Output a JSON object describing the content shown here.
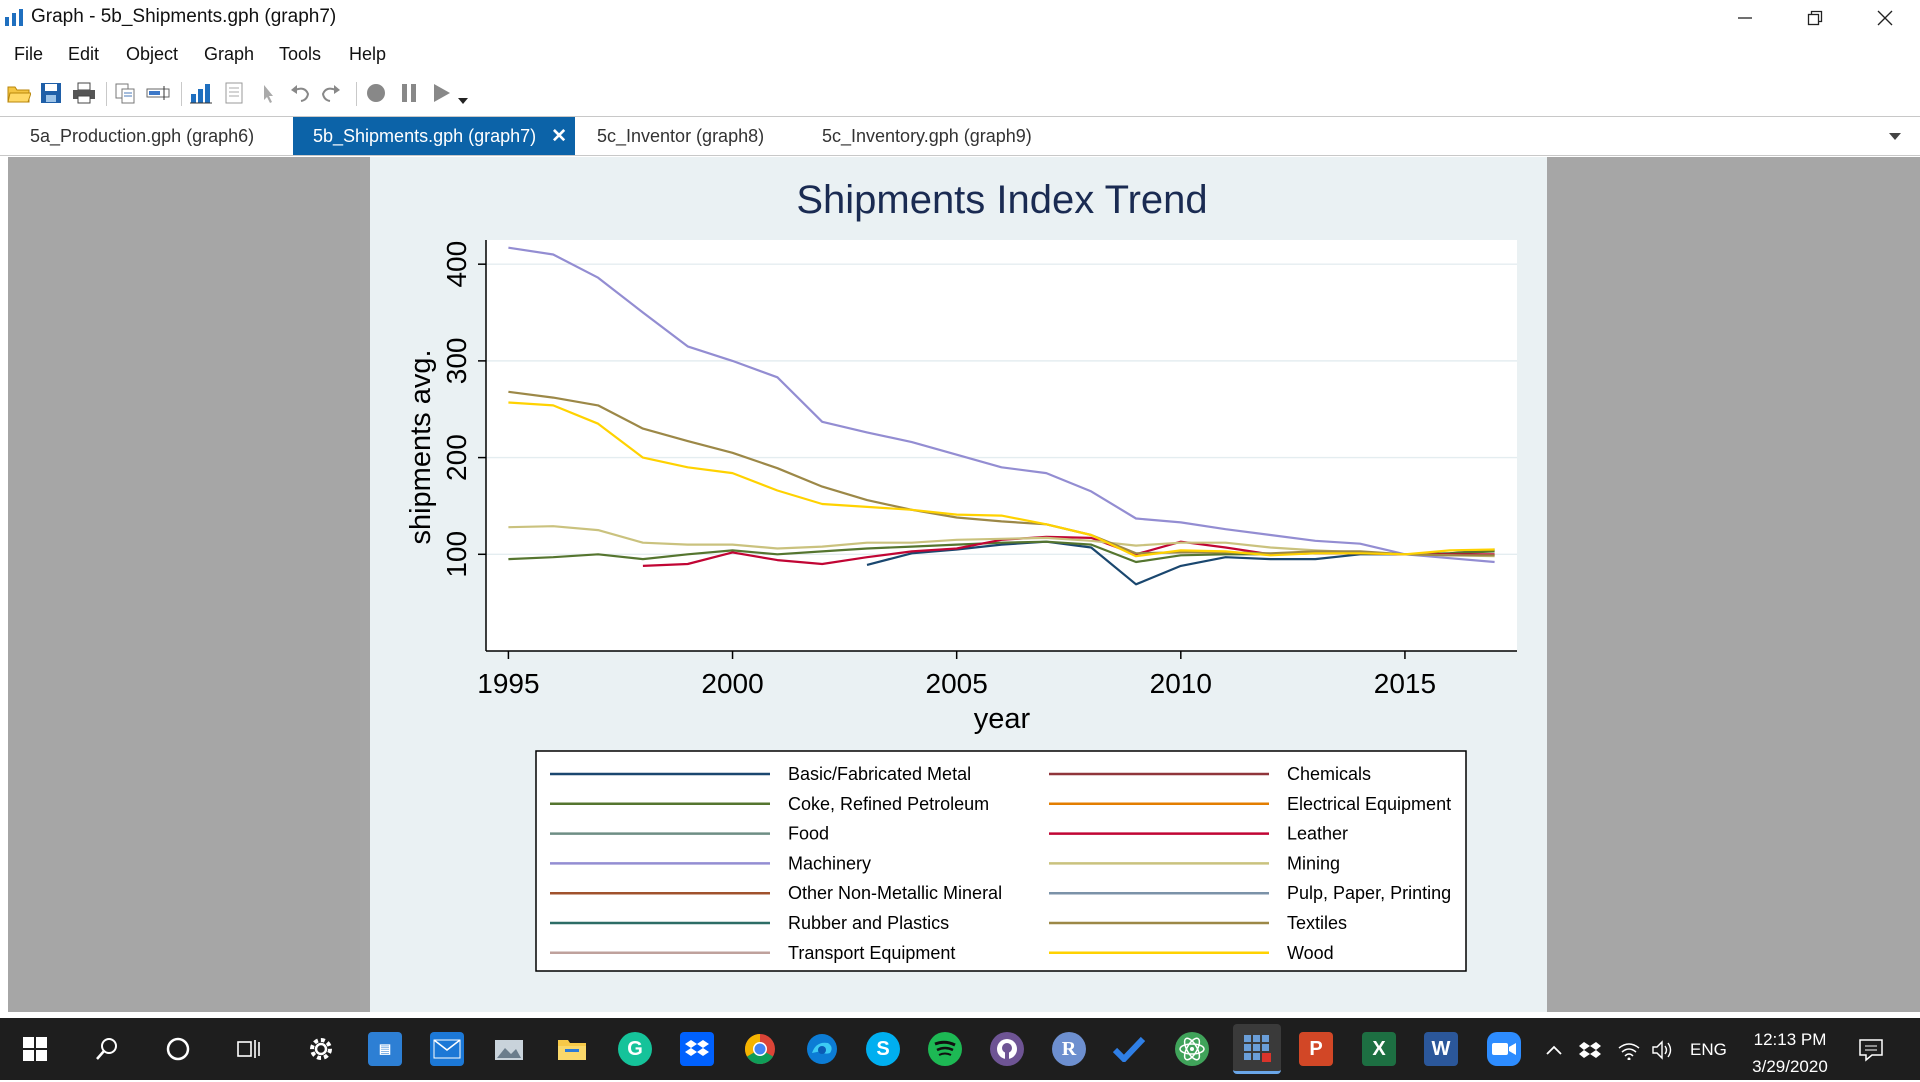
{
  "window": {
    "title": "Graph - 5b_Shipments.gph (graph7)"
  },
  "menu": [
    "File",
    "Edit",
    "Object",
    "Graph",
    "Tools",
    "Help"
  ],
  "toolbar": {
    "icons": [
      "open-icon",
      "save-icon",
      "print-icon",
      "copy-icon",
      "rename-icon",
      "graph-editor-icon",
      "grid-icon",
      "select-icon",
      "undo-icon",
      "redo-icon",
      "record-icon",
      "pause-icon",
      "play-icon"
    ]
  },
  "tabs": [
    {
      "label": "5a_Production.gph (graph6)",
      "active": false
    },
    {
      "label": "5b_Shipments.gph (graph7)",
      "active": true,
      "close": "✕"
    },
    {
      "label": "5c_Inventor (graph8)",
      "active": false
    },
    {
      "label": "5c_Inventory.gph (graph9)",
      "active": false
    }
  ],
  "chart_data": {
    "type": "line",
    "title": "Shipments Index Trend",
    "xlabel": "year",
    "ylabel": "shipments avg.",
    "xlim": [
      1994.5,
      2017.5
    ],
    "ylim": [
      0,
      425
    ],
    "xticks": [
      1995,
      2000,
      2005,
      2010,
      2015
    ],
    "yticks": [
      100,
      200,
      300,
      400
    ],
    "grid": true,
    "legend_position": "bottom",
    "x": [
      1995,
      1996,
      1997,
      1998,
      1999,
      2000,
      2001,
      2002,
      2003,
      2004,
      2005,
      2006,
      2007,
      2008,
      2009,
      2010,
      2011,
      2012,
      2013,
      2014,
      2015,
      2016,
      2017
    ],
    "series": [
      {
        "name": "Basic/Fabricated Metal",
        "color": "#1a476f",
        "values": [
          null,
          null,
          null,
          null,
          null,
          null,
          null,
          null,
          89,
          101,
          105,
          110,
          113,
          107,
          69,
          88,
          97,
          95,
          95,
          100,
          100,
          101,
          105
        ]
      },
      {
        "name": "Chemicals",
        "color": "#90353b",
        "values": [
          null,
          null,
          null,
          null,
          null,
          null,
          null,
          null,
          null,
          null,
          null,
          null,
          null,
          null,
          null,
          null,
          null,
          null,
          null,
          null,
          null,
          null,
          null
        ]
      },
      {
        "name": "Coke, Refined Petroleum",
        "color": "#55752f",
        "values": [
          95,
          97,
          100,
          95,
          100,
          104,
          100,
          103,
          106,
          108,
          110,
          112,
          113,
          110,
          92,
          99,
          100,
          100,
          101,
          101,
          100,
          101,
          103
        ]
      },
      {
        "name": "Electrical Equipment",
        "color": "#e37e00",
        "values": [
          null,
          null,
          null,
          null,
          null,
          null,
          null,
          null,
          null,
          null,
          null,
          null,
          null,
          null,
          null,
          null,
          null,
          null,
          null,
          null,
          null,
          null,
          null
        ]
      },
      {
        "name": "Food",
        "color": "#6e8e84",
        "values": [
          null,
          null,
          null,
          null,
          null,
          null,
          null,
          null,
          null,
          null,
          null,
          null,
          null,
          null,
          null,
          null,
          null,
          null,
          null,
          null,
          null,
          null,
          null
        ]
      },
      {
        "name": "Leather",
        "color": "#c10534",
        "values": [
          null,
          null,
          null,
          88,
          90,
          102,
          94,
          90,
          97,
          103,
          106,
          115,
          118,
          117,
          100,
          113,
          107,
          100,
          101,
          101,
          100,
          100,
          100
        ]
      },
      {
        "name": "Machinery",
        "color": "#938dd2",
        "values": [
          417,
          410,
          386,
          350,
          315,
          300,
          283,
          237,
          226,
          216,
          203,
          190,
          184,
          165,
          137,
          133,
          126,
          120,
          114,
          111,
          100,
          96,
          92
        ]
      },
      {
        "name": "Mining",
        "color": "#cac27e",
        "values": [
          128,
          129,
          125,
          112,
          110,
          110,
          106,
          108,
          112,
          112,
          115,
          116,
          117,
          114,
          109,
          112,
          112,
          107,
          104,
          102,
          100,
          99,
          98
        ]
      },
      {
        "name": "Other Non-Metallic Mineral",
        "color": "#a0522d",
        "values": [
          null,
          null,
          null,
          null,
          null,
          null,
          null,
          null,
          null,
          null,
          null,
          null,
          null,
          null,
          null,
          null,
          null,
          null,
          null,
          null,
          null,
          null,
          null
        ]
      },
      {
        "name": "Pulp, Paper, Printing",
        "color": "#7b92a8",
        "values": [
          null,
          null,
          null,
          null,
          null,
          null,
          null,
          null,
          null,
          null,
          null,
          null,
          null,
          null,
          null,
          null,
          null,
          null,
          null,
          null,
          null,
          null,
          null
        ]
      },
      {
        "name": "Rubber and Plastics",
        "color": "#2d6d66",
        "values": [
          null,
          null,
          null,
          null,
          null,
          null,
          null,
          null,
          null,
          null,
          null,
          null,
          null,
          null,
          null,
          null,
          null,
          null,
          null,
          null,
          null,
          null,
          null
        ]
      },
      {
        "name": "Textiles",
        "color": "#9c8847",
        "values": [
          268,
          262,
          254,
          230,
          217,
          205,
          189,
          170,
          156,
          146,
          138,
          134,
          131,
          120,
          101,
          102,
          102,
          101,
          103,
          103,
          100,
          99,
          99
        ]
      },
      {
        "name": "Transport Equipment",
        "color": "#bfa19c",
        "values": [
          null,
          null,
          null,
          null,
          null,
          null,
          null,
          null,
          null,
          null,
          null,
          null,
          null,
          null,
          null,
          null,
          null,
          null,
          null,
          null,
          null,
          null,
          null
        ]
      },
      {
        "name": "Wood",
        "color": "#ffd200",
        "values": [
          257,
          254,
          235,
          200,
          190,
          184,
          166,
          152,
          149,
          146,
          141,
          140,
          131,
          120,
          98,
          104,
          103,
          99,
          101,
          101,
          100,
          104,
          105
        ]
      }
    ]
  },
  "taskbar": {
    "icons": [
      "start-icon",
      "search-icon",
      "cortana-icon",
      "task-view-icon",
      "settings-icon",
      "file-explorer-app-icon",
      "mail-icon",
      "photos-icon",
      "folder-icon",
      "grammarly-icon",
      "dropbox-icon",
      "chrome-icon",
      "edge-icon",
      "skype-icon",
      "spotify-icon",
      "github-icon",
      "r-icon",
      "todo-icon",
      "atom-icon",
      "stata-icon",
      "powerpoint-icon",
      "excel-icon",
      "word-icon",
      "zoom-icon"
    ],
    "tray": {
      "language": "ENG",
      "time": "12:13 PM",
      "date": "3/29/2020"
    }
  }
}
